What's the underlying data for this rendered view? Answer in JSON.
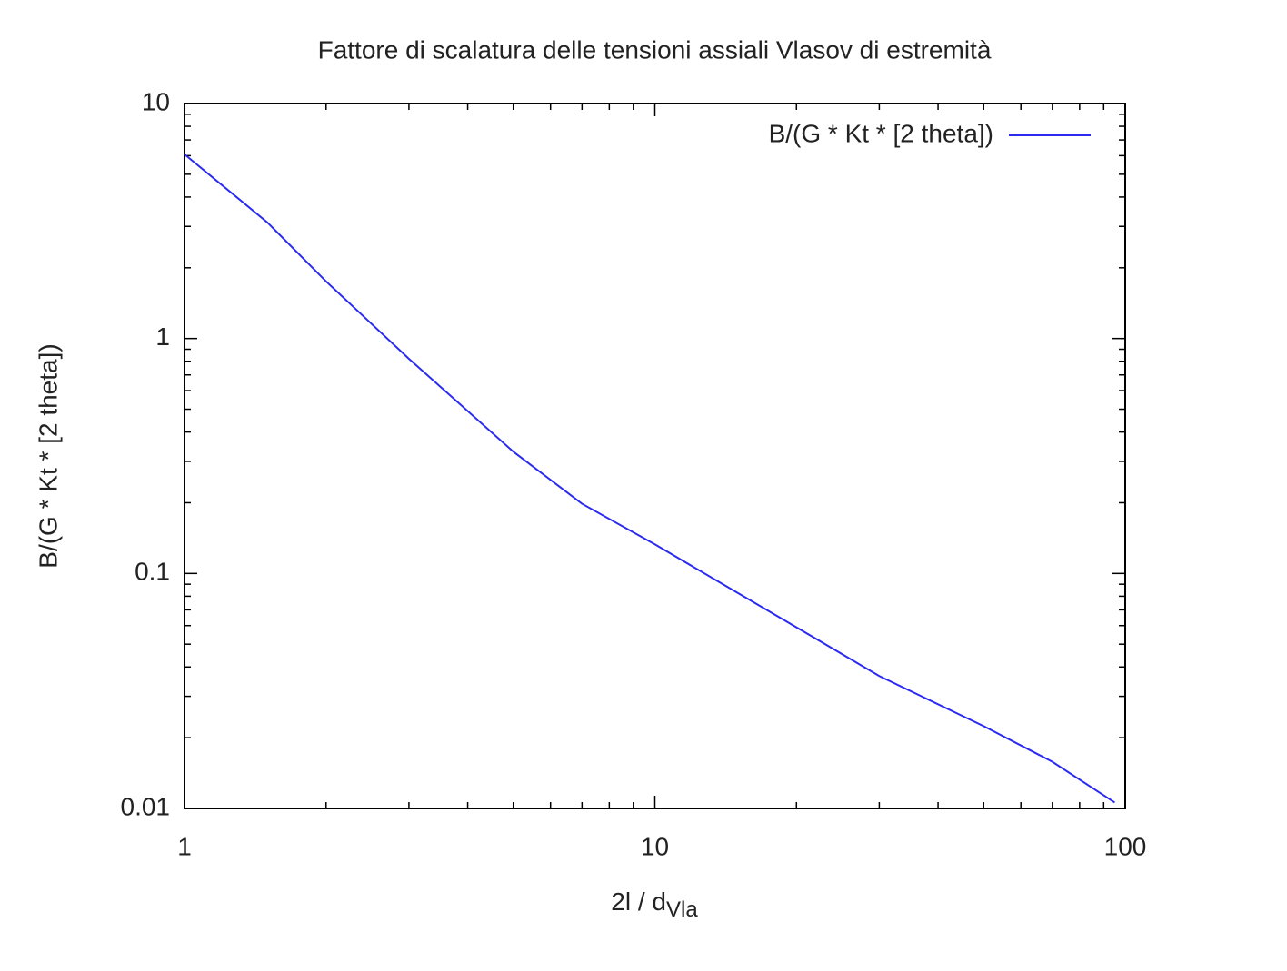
{
  "chart_data": {
    "type": "line",
    "title": "Fattore di scalatura delle tensioni assiali Vlasov di estremità",
    "xlabel": "2l / d",
    "xlabel_sub": "Vla",
    "ylabel": "B/(G * Kt * [2 theta])",
    "x_scale": "log",
    "y_scale": "log",
    "xlim": [
      1,
      100
    ],
    "ylim": [
      0.01,
      10
    ],
    "xticks": [
      1,
      10,
      100
    ],
    "yticks": [
      0.01,
      0.1,
      1,
      10
    ],
    "x_minor_ticks": [
      2,
      3,
      4,
      5,
      6,
      7,
      8,
      9,
      20,
      30,
      40,
      50,
      60,
      70,
      80,
      90
    ],
    "y_minor_ticks": [
      0.02,
      0.03,
      0.04,
      0.05,
      0.06,
      0.07,
      0.08,
      0.09,
      0.2,
      0.3,
      0.4,
      0.5,
      0.6,
      0.7,
      0.8,
      0.9,
      2,
      3,
      4,
      5,
      6,
      7,
      8,
      9
    ],
    "legend": "top-right",
    "series": [
      {
        "name": "B/(G * Kt * [2 theta])",
        "color": "#2b2bf0",
        "x": [
          1,
          1.5,
          2,
          3,
          5,
          7,
          10,
          20,
          30,
          50,
          70,
          95
        ],
        "values": [
          6.08,
          3.12,
          1.75,
          0.82,
          0.33,
          0.198,
          0.133,
          0.059,
          0.0366,
          0.0224,
          0.0158,
          0.0106
        ]
      }
    ]
  }
}
